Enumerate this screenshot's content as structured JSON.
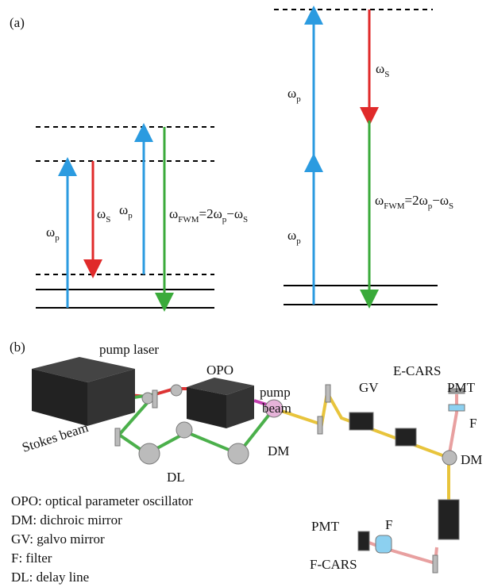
{
  "panel_a": {
    "label": "(a)",
    "math_labels": [
      [
        {
          "text": "ω",
          "sub": "p"
        }
      ],
      [
        {
          "text": "ω",
          "sub": "S"
        }
      ],
      [
        {
          "text": "ω",
          "sub": "p"
        }
      ],
      [
        {
          "text": "ω",
          "sub": "FWM"
        },
        {
          "text": "=2ω",
          "sub": "p"
        },
        {
          "text": "−ω",
          "sub": "S"
        }
      ],
      [
        {
          "text": "ω",
          "sub": "p"
        }
      ],
      [
        {
          "text": "ω",
          "sub": "S"
        }
      ],
      [
        {
          "text": "ω",
          "sub": "p"
        }
      ],
      [
        {
          "text": "ω",
          "sub": "FWM"
        },
        {
          "text": "=2ω",
          "sub": "p"
        },
        {
          "text": "−ω",
          "sub": "S"
        }
      ]
    ]
  },
  "panel_b": {
    "label": "(b)",
    "pump_laser": "pump laser",
    "opo": "OPO",
    "pump_beam": [
      "pump",
      "beam"
    ],
    "stokes_beam": "Stokes beam",
    "dl": "DL",
    "dm_left": "DM",
    "gv": "GV",
    "e_cars": "E-CARS",
    "pmt_top": "PMT",
    "f_top": "F",
    "dm_right": "DM",
    "pmt_bottom": "PMT",
    "f_bottom": "F",
    "f_cars": "F-CARS",
    "legend": [
      "OPO: optical parameter oscillator",
      "DM: dichroic mirror",
      "GV: galvo mirror",
      "F: filter",
      "DL: delay line"
    ]
  }
}
